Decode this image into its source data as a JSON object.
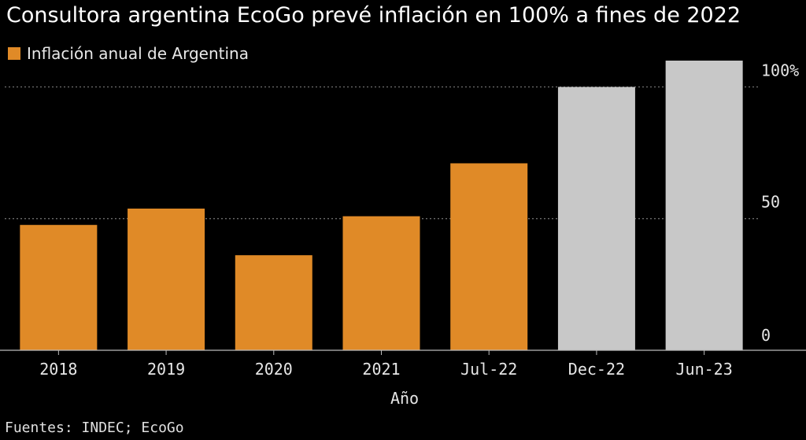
{
  "title": "Consultora argentina EcoGo prevé inflación en 100% a fines de 2022",
  "source": "Fuentes: INDEC; EcoGo",
  "colors": {
    "actual": "#e08a27",
    "forecast": "#c8c8c8",
    "grid": "#777777",
    "axis": "#bbbbbb"
  },
  "chart_data": {
    "type": "bar",
    "categories": [
      "2018",
      "2019",
      "2020",
      "2021",
      "Jul-22",
      "Dec-22",
      "Jun-23"
    ],
    "series": [
      {
        "name": "Inflación anual de Argentina",
        "values": [
          47.6,
          53.8,
          36.1,
          50.9,
          71.0,
          100.0,
          110.0
        ]
      }
    ],
    "forecast_from_index": 5,
    "xlabel": "Año",
    "ylabel": "",
    "ylim": [
      0,
      110
    ],
    "yticks": [
      0,
      50,
      100
    ],
    "ytick_labels": [
      "0",
      "50",
      "100%"
    ],
    "grid": true,
    "legend": "top-left"
  }
}
